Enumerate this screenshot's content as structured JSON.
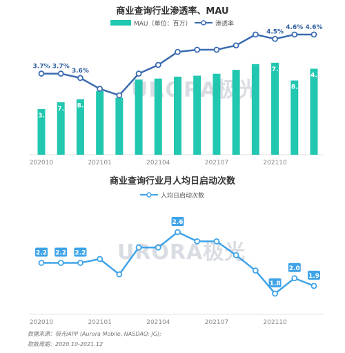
{
  "chart_data": [
    {
      "type": "bar+line",
      "title": "商业查询行业渗透率、MAU",
      "x_ticks": [
        "202010",
        "202101",
        "202104",
        "202107",
        "202110"
      ],
      "months": [
        "202010",
        "202011",
        "202012",
        "202101",
        "202102",
        "202103",
        "202104",
        "202105",
        "202106",
        "202107",
        "202108",
        "202109",
        "202110",
        "202111",
        "202112"
      ],
      "series": [
        {
          "name": "MAU（单位：百万）",
          "kind": "bar",
          "color": "#22c7b0",
          "values": [
            23.7,
            27.2,
            28.8,
            33.0,
            29.5,
            39.0,
            39.5,
            40.5,
            41.0,
            42.0,
            44.0,
            47.0,
            47.7,
            38.5,
            44.6
          ],
          "labels": [
            "23.7",
            "27.2",
            "28.8",
            "",
            "",
            "",
            "",
            "",
            "",
            "",
            "",
            "",
            "47.7",
            "38.5",
            "44.6"
          ]
        },
        {
          "name": "渗透率",
          "kind": "line",
          "color": "#3a6bb0",
          "values": [
            3.7,
            3.7,
            3.6,
            3.35,
            3.2,
            3.7,
            3.9,
            4.2,
            4.25,
            4.25,
            4.35,
            4.6,
            4.5,
            4.6,
            4.6
          ],
          "labels": [
            "3.7%",
            "3.7%",
            "3.6%",
            "",
            "",
            "",
            "",
            "",
            "",
            "",
            "",
            "",
            "4.5%",
            "4.6%",
            "4.6%"
          ]
        }
      ]
    },
    {
      "type": "line",
      "title": "商业查询行业月人均日启动次数",
      "x_ticks": [
        "202010",
        "202101",
        "202104",
        "202107",
        "202110"
      ],
      "months": [
        "202010",
        "202011",
        "202012",
        "202101",
        "202102",
        "202103",
        "202104",
        "202105",
        "202106",
        "202107",
        "202108",
        "202109",
        "202110",
        "202111",
        "202112"
      ],
      "series": [
        {
          "name": "人均日启动次数",
          "color": "#3fa3e8",
          "values": [
            2.2,
            2.2,
            2.2,
            2.25,
            2.05,
            2.4,
            2.4,
            2.6,
            2.48,
            2.48,
            2.3,
            2.1,
            1.8,
            2.0,
            1.9
          ],
          "labels": [
            "2.2",
            "2.2",
            "2.2",
            "",
            "",
            "",
            "",
            "2.6",
            "",
            "",
            "",
            "",
            "1.8",
            "2.0",
            "1.9"
          ]
        }
      ]
    }
  ],
  "watermark": "URORA极光",
  "footer": {
    "source": "数据来源：极光iAPP (Aurora Mobile, NASDAQ: JG);",
    "period": "取数周期：2020.10-2021.12"
  }
}
